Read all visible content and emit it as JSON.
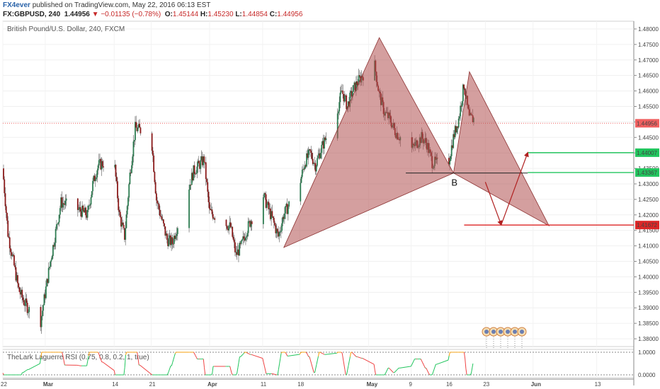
{
  "header": {
    "brand": "FX4ever",
    "published_text": " published on TradingView.com, May 22, 2016 06:13 EST",
    "symbol": "FX:GBPUSD, 240",
    "last": "1.44956",
    "change": "−0.01135 (−0.78%)",
    "o_label": "O:",
    "o_value": "1.45144",
    "h_label": "H:",
    "h_value": "1.45230",
    "l_label": "L:",
    "l_value": "1.44854",
    "c_label": "C:",
    "c_value": "1.44956"
  },
  "chart_data": {
    "type": "candlestick",
    "title": "British Pound/U.S. Dollar, 240, FXCM",
    "ylim": [
      1.3775,
      1.4825
    ],
    "y_ticks": [
      1.38,
      1.385,
      1.39,
      1.395,
      1.4,
      1.405,
      1.41,
      1.415,
      1.42,
      1.425,
      1.43,
      1.435,
      1.44,
      1.445,
      1.45,
      1.455,
      1.46,
      1.465,
      1.47,
      1.475,
      1.48
    ],
    "x_ticks": [
      "22",
      "Mar",
      "14",
      "21",
      "Apr",
      "11",
      "18",
      "May",
      "9",
      "16",
      "23",
      "Jun",
      "13"
    ],
    "x_tick_dates": [
      "2016-02-22",
      "2016-03-01",
      "2016-03-14",
      "2016-03-21",
      "2016-04-01",
      "2016-04-11",
      "2016-04-18",
      "2016-05-01",
      "2016-05-09",
      "2016-05-16",
      "2016-05-23",
      "2016-06-01",
      "2016-06-13"
    ],
    "price_path": [
      [
        "2016-02-22",
        1.435
      ],
      [
        "2016-02-23",
        1.414
      ],
      [
        "2016-02-25",
        1.396
      ],
      [
        "2016-02-26",
        1.392
      ],
      [
        "2016-02-29",
        1.384
      ],
      [
        "2016-03-02",
        1.405
      ],
      [
        "2016-03-04",
        1.424
      ],
      [
        "2016-03-07",
        1.422
      ],
      [
        "2016-03-09",
        1.42
      ],
      [
        "2016-03-10",
        1.43
      ],
      [
        "2016-03-11",
        1.436
      ],
      [
        "2016-03-14",
        1.438
      ],
      [
        "2016-03-15",
        1.42
      ],
      [
        "2016-03-16",
        1.413
      ],
      [
        "2016-03-17",
        1.433
      ],
      [
        "2016-03-18",
        1.448
      ],
      [
        "2016-03-21",
        1.446
      ],
      [
        "2016-03-22",
        1.425
      ],
      [
        "2016-03-24",
        1.412
      ],
      [
        "2016-03-25",
        1.411
      ],
      [
        "2016-03-29",
        1.434
      ],
      [
        "2016-03-31",
        1.438
      ],
      [
        "2016-04-01",
        1.421
      ],
      [
        "2016-04-05",
        1.416
      ],
      [
        "2016-04-06",
        1.407
      ],
      [
        "2016-04-07",
        1.41
      ],
      [
        "2016-04-08",
        1.415
      ],
      [
        "2016-04-11",
        1.427
      ],
      [
        "2016-04-13",
        1.418
      ],
      [
        "2016-04-14",
        1.413
      ],
      [
        "2016-04-15",
        1.42
      ],
      [
        "2016-04-18",
        1.43
      ],
      [
        "2016-04-19",
        1.437
      ],
      [
        "2016-04-20",
        1.44
      ],
      [
        "2016-04-21",
        1.436
      ],
      [
        "2016-04-22",
        1.441
      ],
      [
        "2016-04-25",
        1.453
      ],
      [
        "2016-04-26",
        1.46
      ],
      [
        "2016-04-27",
        1.455
      ],
      [
        "2016-04-28",
        1.46
      ],
      [
        "2016-04-29",
        1.463
      ],
      [
        "2016-05-02",
        1.47
      ],
      [
        "2016-05-03",
        1.459
      ],
      [
        "2016-05-04",
        1.453
      ],
      [
        "2016-05-05",
        1.451
      ],
      [
        "2016-05-06",
        1.447
      ],
      [
        "2016-05-09",
        1.441
      ],
      [
        "2016-05-10",
        1.443
      ],
      [
        "2016-05-11",
        1.445
      ],
      [
        "2016-05-12",
        1.443
      ],
      [
        "2016-05-13",
        1.437
      ],
      [
        "2016-05-16",
        1.436
      ],
      [
        "2016-05-17",
        1.445
      ],
      [
        "2016-05-18",
        1.451
      ],
      [
        "2016-05-19",
        1.462
      ],
      [
        "2016-05-20",
        1.451
      ]
    ],
    "pattern": {
      "points": [
        [
          "2016-04-15",
          1.4095
        ],
        [
          "2016-05-03",
          1.4772
        ],
        [
          "2016-05-17",
          1.4335
        ],
        [
          "2016-05-20",
          1.4662
        ],
        [
          "2016-06-04",
          1.4165
        ]
      ],
      "point_labels": [
        "",
        "",
        "B",
        "",
        ""
      ],
      "fill_color": "#b05050"
    },
    "levels": [
      {
        "name": "current price",
        "value": 1.44956,
        "label": "1.44956",
        "color": "#f06060",
        "style": "dotted"
      },
      {
        "name": "target 1",
        "value": 1.44007,
        "label": "1.44007",
        "color": "#22c55e"
      },
      {
        "name": "target 2",
        "value": 1.43367,
        "label": "1.43367",
        "color": "#22c55e"
      },
      {
        "name": "stop",
        "value": 1.41672,
        "label": "1.41672",
        "color": "#dc2626"
      }
    ],
    "projection_arrows": [
      [
        [
          "2016-05-23",
          1.4306
        ],
        [
          "2016-05-26",
          1.4168
        ]
      ],
      [
        [
          "2016-05-26",
          1.4168
        ],
        [
          "2016-05-31",
          1.4401
        ]
      ]
    ],
    "b_neckline": [
      [
        "2016-05-08",
        1.4335
      ],
      [
        "2016-05-31",
        1.4335
      ]
    ],
    "indicator": {
      "name": "TheLark Laguerre RSI (0.75, 0.8, 0.2, 1, true)",
      "y_ticks": [
        1.0,
        0.0
      ],
      "y_tick_labels": [
        "1.0000",
        "0.0000"
      ],
      "color_up": "#22c55e",
      "color_down": "#ef4444",
      "color_top": "#f59e0b"
    },
    "event_markers_count": 6
  }
}
